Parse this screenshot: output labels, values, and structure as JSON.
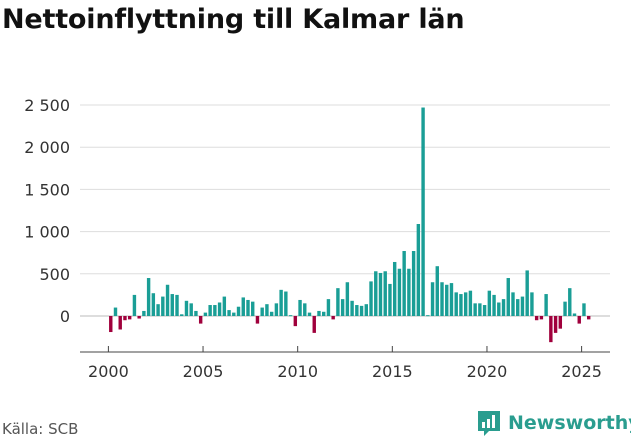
{
  "chart_data": {
    "type": "bar",
    "title": "Nettoinflyttning till Kalmar län",
    "source": "Källa: SCB",
    "xlabel": "",
    "ylabel": "",
    "ylim": [
      -350,
      2600
    ],
    "xlim": [
      1998.5,
      2026.5
    ],
    "yticks": [
      0,
      500,
      1000,
      1500,
      2000,
      2500
    ],
    "ytick_labels": [
      "0",
      "500",
      "1 000",
      "1 500",
      "2 000",
      "2 500"
    ],
    "xticks": [
      2000,
      2005,
      2010,
      2015,
      2020,
      2025
    ],
    "xtick_labels": [
      "2000",
      "2005",
      "2010",
      "2015",
      "2020",
      "2025"
    ],
    "colors": {
      "positive": "#1a9e96",
      "negative": "#a0003c"
    },
    "period": "quarterly",
    "start": 2000,
    "values": [
      -190,
      100,
      -160,
      -50,
      -40,
      250,
      -30,
      60,
      450,
      270,
      140,
      230,
      370,
      260,
      250,
      20,
      180,
      150,
      60,
      -90,
      40,
      130,
      130,
      160,
      230,
      70,
      40,
      110,
      220,
      190,
      170,
      -90,
      100,
      140,
      50,
      150,
      310,
      290,
      10,
      -120,
      190,
      150,
      40,
      -200,
      60,
      50,
      200,
      -40,
      330,
      200,
      400,
      180,
      130,
      120,
      140,
      410,
      530,
      510,
      530,
      380,
      640,
      560,
      770,
      560,
      770,
      1090,
      2470,
      10,
      400,
      590,
      400,
      370,
      390,
      280,
      260,
      280,
      300,
      150,
      150,
      130,
      300,
      250,
      160,
      200,
      450,
      280,
      200,
      230,
      540,
      280,
      -50,
      -40,
      260,
      -310,
      -200,
      -150,
      170,
      330,
      30,
      -90,
      150,
      -40
    ]
  },
  "brand": {
    "name": "Newsworthy",
    "icon": "newsworthy-logo-icon",
    "color": "#2a9d8f"
  }
}
